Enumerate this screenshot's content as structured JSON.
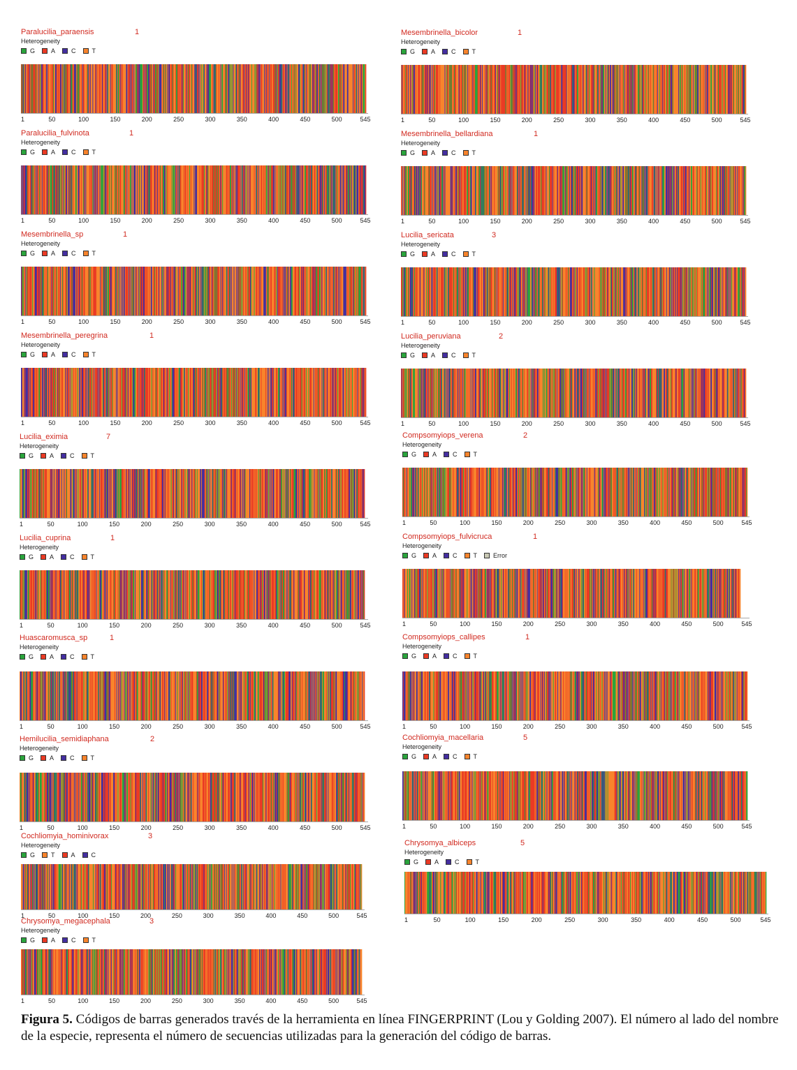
{
  "chart_data": {
    "type": "barcode",
    "heterogeneity_label": "Heterogeneity",
    "tick_labels": [
      "1",
      "50",
      "100",
      "150",
      "200",
      "250",
      "300",
      "350",
      "400",
      "450",
      "500",
      "545"
    ],
    "xlim": [
      1,
      545
    ],
    "base_colors": {
      "G": "#2aa43c",
      "A": "#ea3a24",
      "C": "#442ea0",
      "T": "#f8842c",
      "Error": "#c8c8b4"
    },
    "panels": [
      {
        "species": "Paralucilia_paraensis",
        "count": "1",
        "legend": [
          "G",
          "A",
          "C",
          "T"
        ]
      },
      {
        "species": "Paralucilia_fulvinota",
        "count": "1",
        "legend": [
          "G",
          "A",
          "C",
          "T"
        ]
      },
      {
        "species": "Mesembrinella_sp",
        "count": "1",
        "legend": [
          "G",
          "A",
          "C",
          "T"
        ]
      },
      {
        "species": "Mesembrinella_peregrina",
        "count": "1",
        "legend": [
          "G",
          "A",
          "C",
          "T"
        ]
      },
      {
        "species": "Lucilia_eximia",
        "count": "7",
        "legend": [
          "G",
          "A",
          "C",
          "T"
        ]
      },
      {
        "species": "Lucilia_cuprina",
        "count": "1",
        "legend": [
          "G",
          "A",
          "C",
          "T"
        ]
      },
      {
        "species": "Huascaromusca_sp",
        "count": "1",
        "legend": [
          "G",
          "A",
          "C",
          "T"
        ]
      },
      {
        "species": "Hemilucilia_semidiaphana",
        "count": "2",
        "legend": [
          "G",
          "A",
          "C",
          "T"
        ]
      },
      {
        "species": "Cochliomyia_hominivorax",
        "count": "3",
        "legend": [
          "G",
          "T",
          "A",
          "C"
        ]
      },
      {
        "species": "Chrysomya_megacephala",
        "count": "3",
        "legend": [
          "G",
          "A",
          "C",
          "T"
        ]
      },
      {
        "species": "Mesembrinella_bicolor",
        "count": "1",
        "legend": [
          "G",
          "A",
          "C",
          "T"
        ]
      },
      {
        "species": "Mesembrinella_bellardiana",
        "count": "1",
        "legend": [
          "G",
          "A",
          "C",
          "T"
        ]
      },
      {
        "species": "Lucilia_sericata",
        "count": "3",
        "legend": [
          "G",
          "A",
          "C",
          "T"
        ]
      },
      {
        "species": "Lucilia_peruviana",
        "count": "2",
        "legend": [
          "G",
          "A",
          "C",
          "T"
        ]
      },
      {
        "species": "Compsomyiops_verena",
        "count": "2",
        "legend": [
          "G",
          "A",
          "C",
          "T"
        ]
      },
      {
        "species": "Compsomyiops_fulvicruca",
        "count": "1",
        "legend": [
          "G",
          "A",
          "C",
          "T",
          "Error"
        ]
      },
      {
        "species": "Compsomyiops_callipes",
        "count": "1",
        "legend": [
          "G",
          "A",
          "C",
          "T"
        ]
      },
      {
        "species": "Cochliomyia_macellaria",
        "count": "5",
        "legend": [
          "G",
          "A",
          "C",
          "T"
        ]
      },
      {
        "species": "Chrysomya_albiceps",
        "count": "5",
        "legend": [
          "G",
          "A",
          "C",
          "T"
        ]
      }
    ]
  },
  "caption": {
    "label": "Figura 5.",
    "text": " Códigos de barras generados través de la herramienta en línea FINGERPRINT (Lou y Golding 2007). El número al lado del nombre de la especie, representa el número de secuencias utilizadas para la generación del código de barras."
  }
}
